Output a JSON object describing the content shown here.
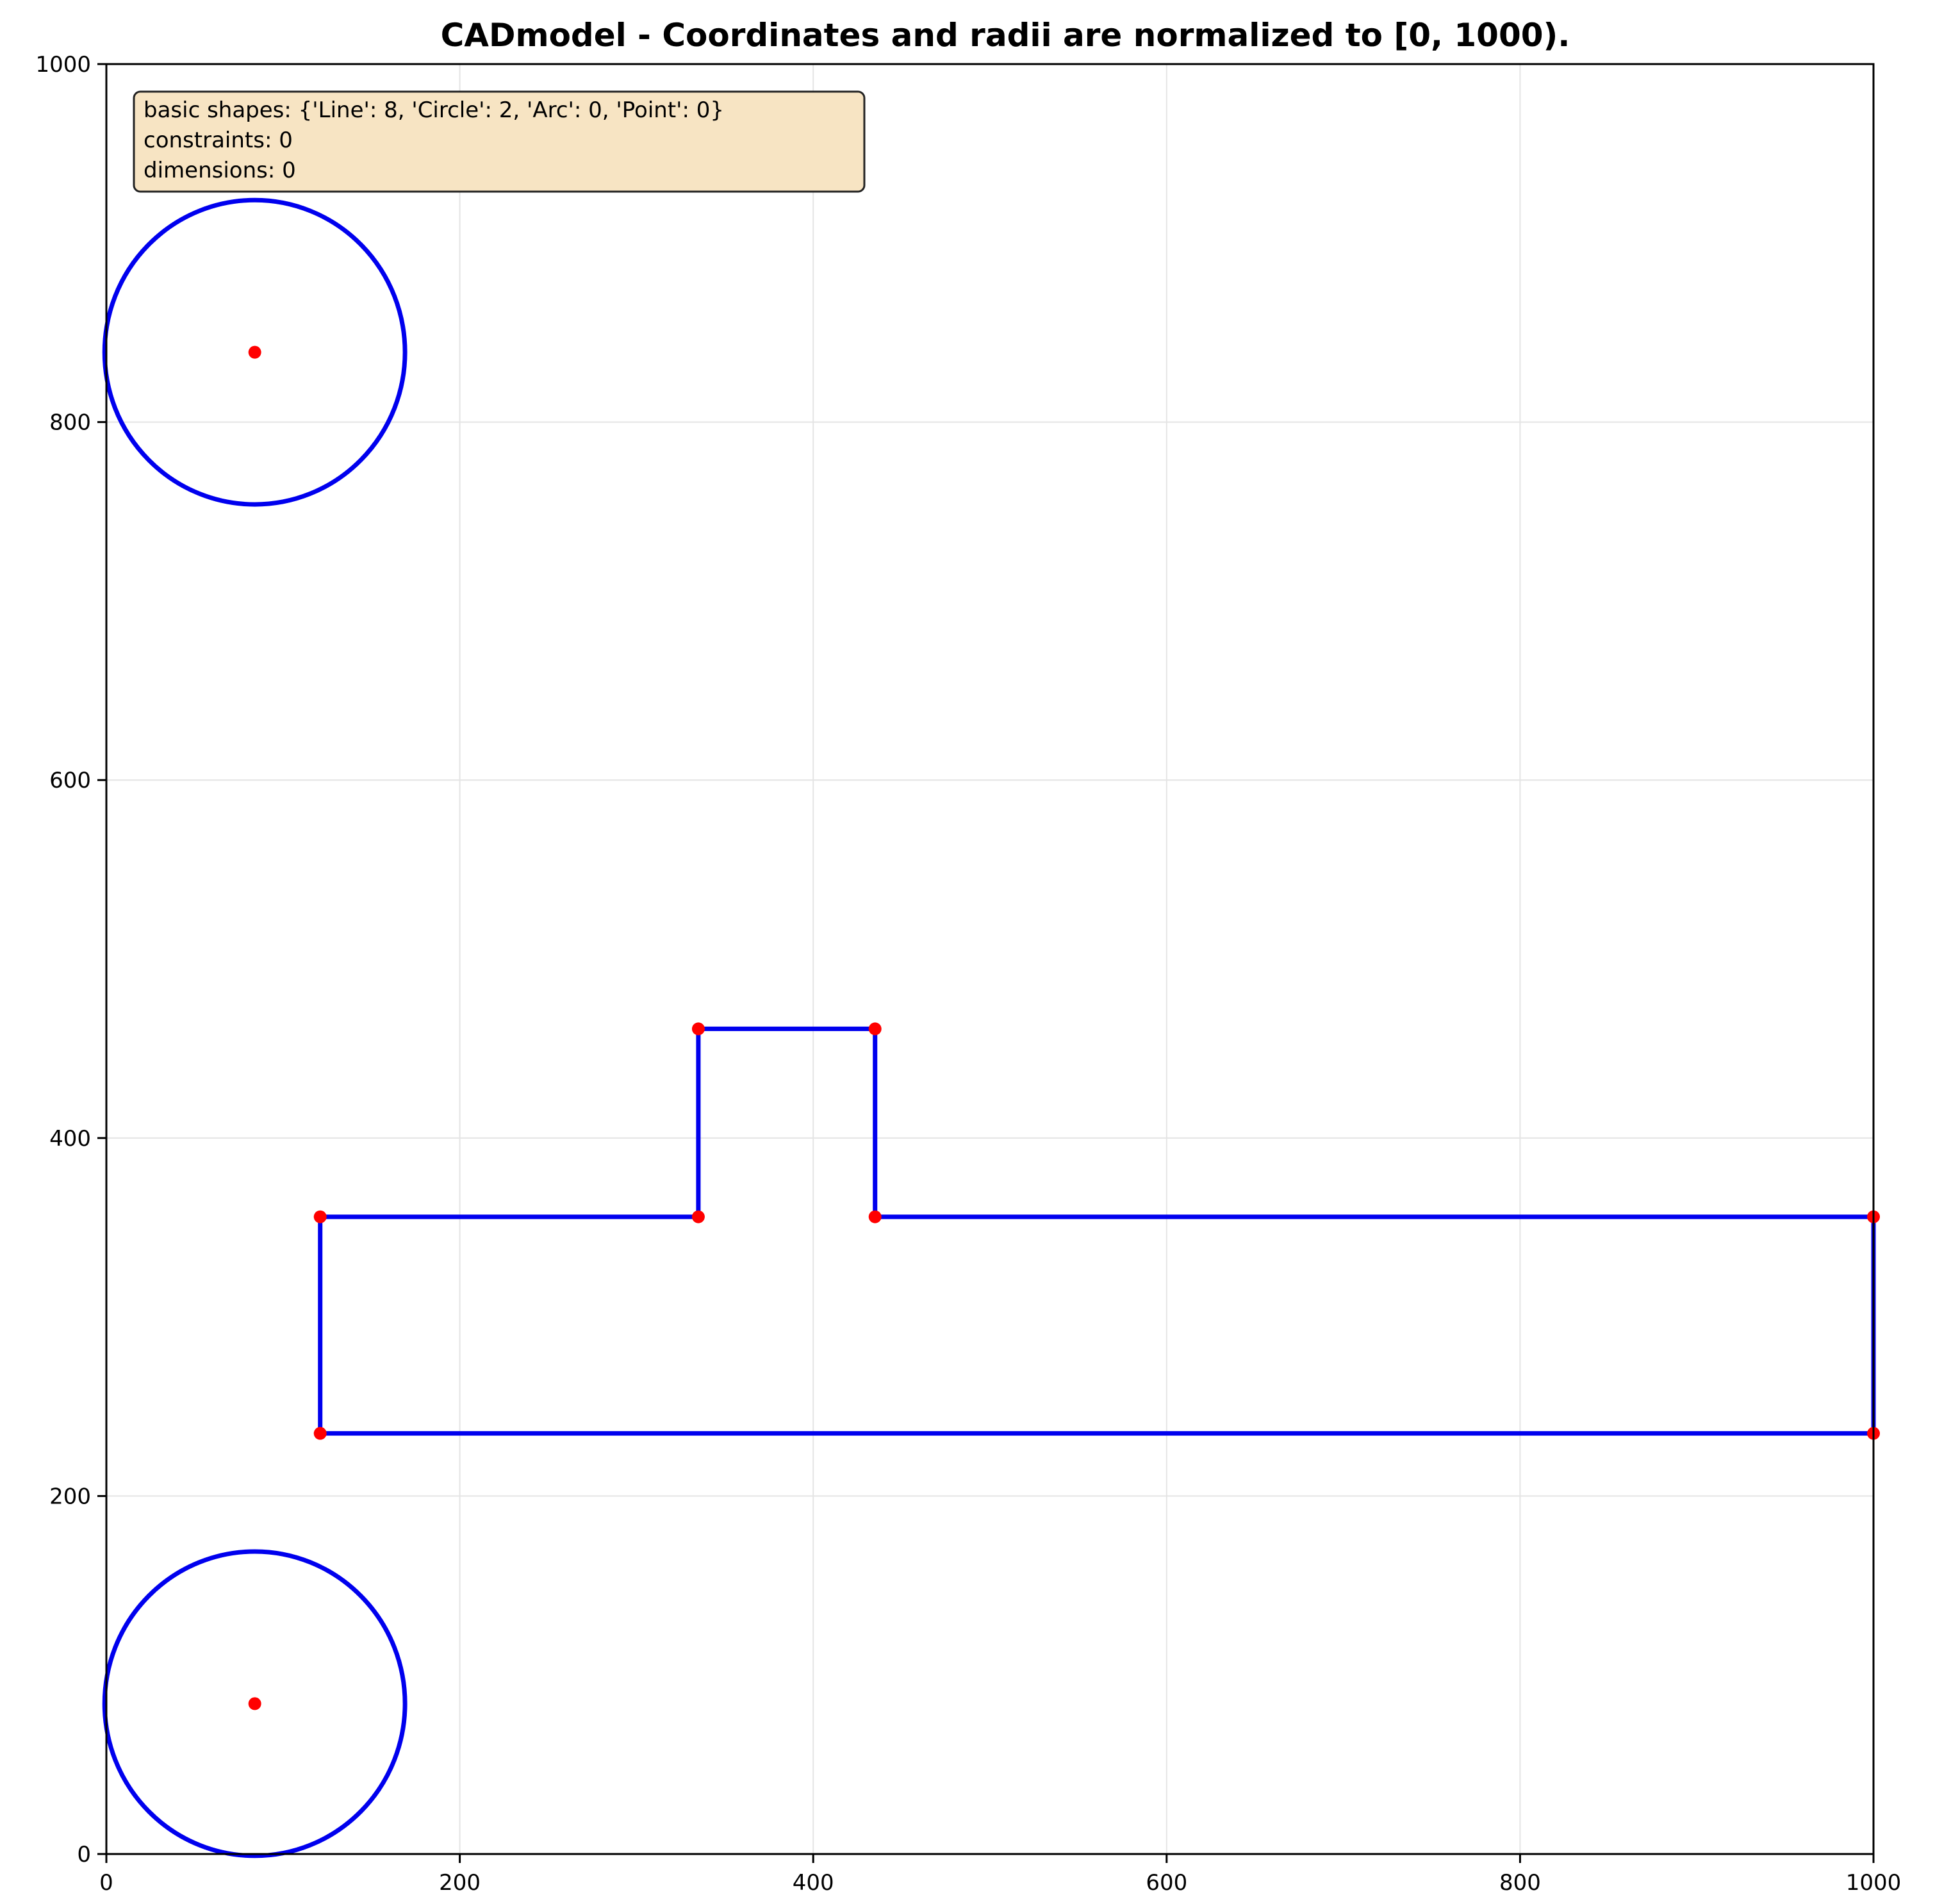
{
  "chart_data": {
    "type": "cad_sketch",
    "title": "CADmodel - Coordinates and radii are normalized to [0, 1000).",
    "xlim": [
      0,
      1000
    ],
    "ylim": [
      0,
      1000
    ],
    "x_ticks": [
      0,
      200,
      400,
      600,
      800,
      1000
    ],
    "y_ticks": [
      0,
      200,
      400,
      600,
      800,
      1000
    ],
    "grid": true,
    "info_box": {
      "lines": [
        "basic shapes: {'Line': 8, 'Circle': 2, 'Arc': 0, 'Point': 0}",
        "constraints: 0",
        "dimensions: 0"
      ],
      "placement": "top-left"
    },
    "colors": {
      "shape": "#0000ee",
      "point": "#ff0000",
      "grid": "#e4e4e4",
      "info_box_fill": "#f7e4c3"
    },
    "lines": [
      {
        "x1": 121,
        "y1": 356,
        "x2": 335,
        "y2": 356
      },
      {
        "x1": 335,
        "y1": 356,
        "x2": 335,
        "y2": 461
      },
      {
        "x1": 335,
        "y1": 461,
        "x2": 435,
        "y2": 461
      },
      {
        "x1": 435,
        "y1": 461,
        "x2": 435,
        "y2": 356
      },
      {
        "x1": 435,
        "y1": 356,
        "x2": 1000,
        "y2": 356
      },
      {
        "x1": 1000,
        "y1": 356,
        "x2": 1000,
        "y2": 235
      },
      {
        "x1": 1000,
        "y1": 235,
        "x2": 121,
        "y2": 235
      },
      {
        "x1": 121,
        "y1": 235,
        "x2": 121,
        "y2": 356
      }
    ],
    "circles": [
      {
        "cx": 84,
        "cy": 839,
        "r": 85
      },
      {
        "cx": 84,
        "cy": 84,
        "r": 85
      }
    ],
    "points": [
      [
        121,
        356
      ],
      [
        335,
        356
      ],
      [
        335,
        461
      ],
      [
        435,
        461
      ],
      [
        435,
        356
      ],
      [
        1000,
        356
      ],
      [
        1000,
        235
      ],
      [
        121,
        235
      ],
      [
        84,
        839
      ],
      [
        84,
        84
      ]
    ]
  }
}
